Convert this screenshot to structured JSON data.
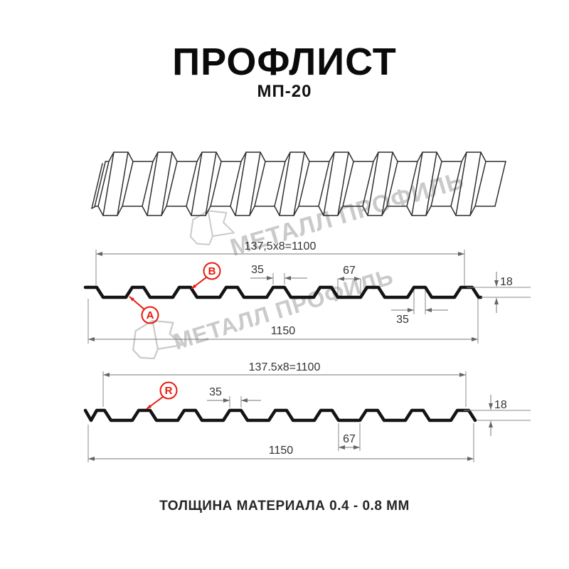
{
  "header": {
    "title": "ПРОФЛИСТ",
    "subtitle": "МП-20"
  },
  "footer": {
    "note": "ТОЛЩИНА МАТЕРИАЛА 0.4 - 0.8 ММ"
  },
  "watermark": {
    "text": "МЕТАЛЛ ПРОФИЛЬ"
  },
  "colors": {
    "accent_red": "#e81a0f",
    "dim_gray": "#777777",
    "profile_black": "#141414",
    "watermark_gray": "#cacaca"
  },
  "diagram_top": {
    "dim_working_width": "137,5x8=1100",
    "dim_rib_top": "35",
    "dim_valley_width": "67",
    "dim_height": "18",
    "dim_rib_top_2": "35",
    "dim_total_width": "1150",
    "label_a": "A",
    "label_b": "B"
  },
  "diagram_bottom": {
    "dim_working_width": "137.5x8=1100",
    "dim_rib_top": "35",
    "dim_valley_width": "67",
    "dim_height": "18",
    "dim_total_width": "1150",
    "label_r": "R"
  }
}
